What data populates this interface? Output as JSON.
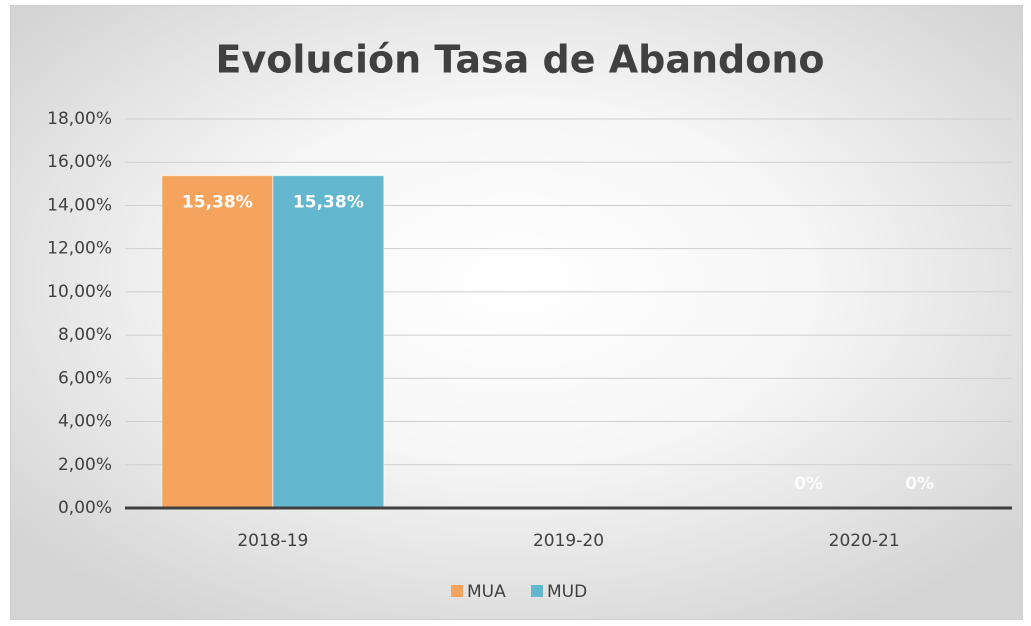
{
  "chart_data": {
    "type": "bar",
    "title": "Evolución Tasa de Abandono",
    "categories": [
      "2018-19",
      "2019-20",
      "2020-21"
    ],
    "series": [
      {
        "name": "MUA",
        "color": "#f5a35d",
        "values": [
          15.38,
          null,
          0
        ],
        "value_labels": [
          "15,38%",
          null,
          "0%"
        ]
      },
      {
        "name": "MUD",
        "color": "#63b8cf",
        "values": [
          15.38,
          null,
          0
        ],
        "value_labels": [
          "15,38%",
          null,
          "0%"
        ]
      }
    ],
    "ylim": [
      0,
      18
    ],
    "yticks": [
      {
        "value": 0,
        "label": "0,00%"
      },
      {
        "value": 2,
        "label": "2,00%"
      },
      {
        "value": 4,
        "label": "4,00%"
      },
      {
        "value": 6,
        "label": "6,00%"
      },
      {
        "value": 8,
        "label": "8,00%"
      },
      {
        "value": 10,
        "label": "10,00%"
      },
      {
        "value": 12,
        "label": "12,00%"
      },
      {
        "value": 14,
        "label": "14,00%"
      },
      {
        "value": 16,
        "label": "16,00%"
      },
      {
        "value": 18,
        "label": "18,00%"
      }
    ],
    "grid": true,
    "legend": "bottom"
  }
}
